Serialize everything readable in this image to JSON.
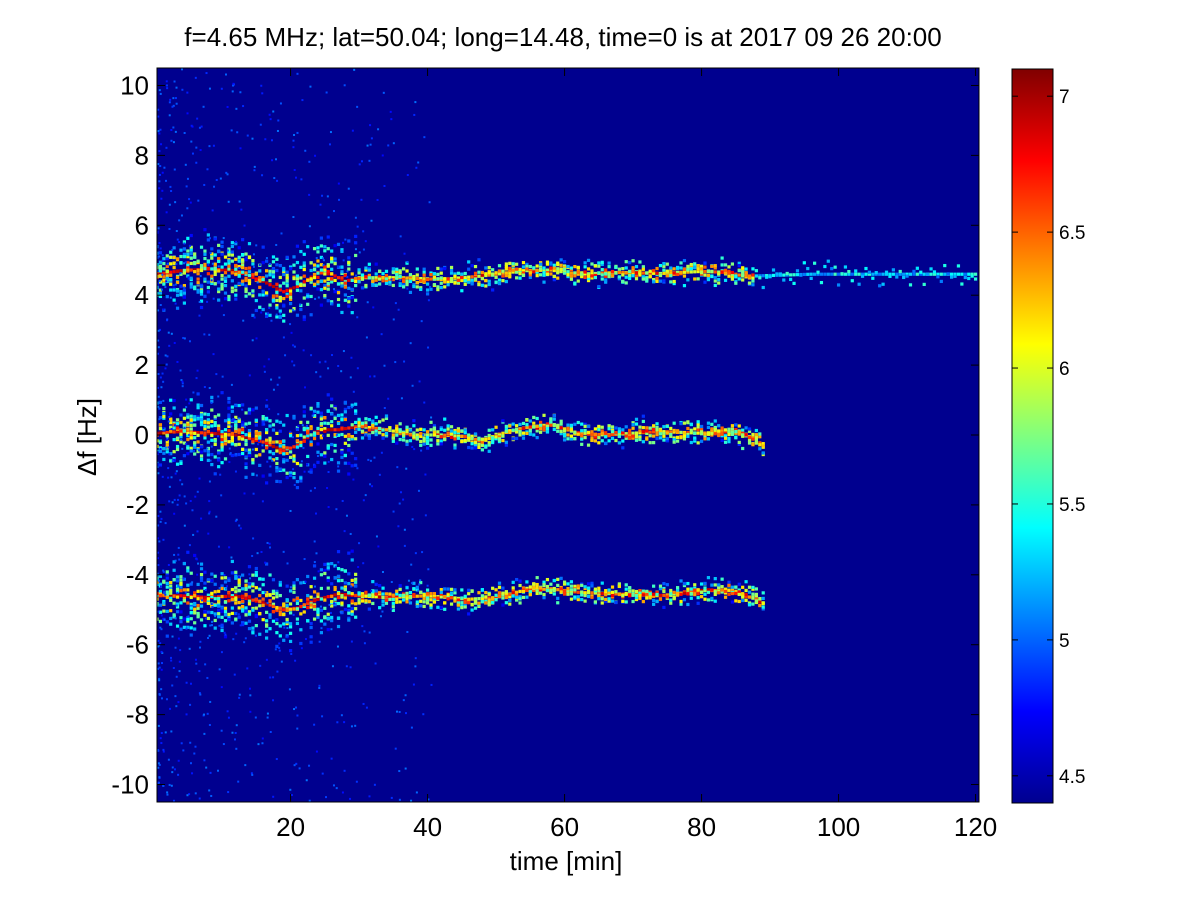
{
  "chart_data": {
    "type": "heatmap",
    "title": "f=4.65 MHz;  lat=50.04; long=14.48, time=0 is at 2017 09 26 20:00",
    "xlabel": "time [min]",
    "ylabel": "Δf [Hz]",
    "xlim": [
      0.5,
      120.5
    ],
    "ylim": [
      -10.5,
      10.5
    ],
    "xticks": [
      20,
      40,
      60,
      80,
      100,
      120
    ],
    "yticks": [
      -10,
      -8,
      -6,
      -4,
      -2,
      0,
      2,
      4,
      6,
      8,
      10
    ],
    "grid": false,
    "background_level": 4.5,
    "colorbar": {
      "colormap": "jet",
      "range": [
        4.4,
        7.1
      ],
      "ticks": [
        4.5,
        5,
        5.5,
        6,
        6.5,
        7
      ],
      "tick_labels": [
        "4.5",
        "5",
        "5.5",
        "6",
        "6.5",
        "7"
      ]
    },
    "traces": [
      {
        "points": [
          [
            0.5,
            4.6
          ],
          [
            4,
            4.7
          ],
          [
            8,
            4.75
          ],
          [
            12,
            4.7
          ],
          [
            16,
            4.4
          ],
          [
            19,
            4.1
          ],
          [
            21,
            4.25
          ],
          [
            24,
            4.65
          ],
          [
            26,
            4.6
          ],
          [
            28,
            4.4
          ],
          [
            30,
            4.5
          ],
          [
            36,
            4.5
          ],
          [
            42,
            4.45
          ],
          [
            48,
            4.55
          ],
          [
            54,
            4.7
          ],
          [
            58,
            4.72
          ],
          [
            62,
            4.6
          ],
          [
            68,
            4.65
          ],
          [
            74,
            4.62
          ],
          [
            80,
            4.68
          ],
          [
            84,
            4.65
          ],
          [
            87,
            4.5
          ],
          [
            88,
            4.55
          ],
          [
            96,
            4.6
          ],
          [
            104,
            4.6
          ],
          [
            112,
            4.6
          ],
          [
            120,
            4.6
          ]
        ],
        "peak": 7.0,
        "end_strong": 30,
        "end": 87.5
      },
      {
        "points": [
          [
            0.5,
            0.05
          ],
          [
            4,
            0.1
          ],
          [
            8,
            0.05
          ],
          [
            12,
            0.0
          ],
          [
            16,
            -0.2
          ],
          [
            19,
            -0.45
          ],
          [
            21,
            -0.3
          ],
          [
            24,
            0.15
          ],
          [
            27,
            0.15
          ],
          [
            30,
            0.25
          ],
          [
            34,
            0.15
          ],
          [
            38,
            0.0
          ],
          [
            42,
            0.0
          ],
          [
            46,
            -0.05
          ],
          [
            48,
            -0.2
          ],
          [
            50,
            0.0
          ],
          [
            54,
            0.2
          ],
          [
            58,
            0.3
          ],
          [
            62,
            0.05
          ],
          [
            66,
            0.0
          ],
          [
            70,
            0.05
          ],
          [
            74,
            0.1
          ],
          [
            80,
            0.05
          ],
          [
            84,
            0.1
          ],
          [
            88,
            -0.1
          ],
          [
            89,
            -0.35
          ]
        ],
        "peak": 7.0,
        "end_strong": 30,
        "end": 89.5
      },
      {
        "points": [
          [
            0.5,
            -4.6
          ],
          [
            4,
            -4.6
          ],
          [
            8,
            -4.65
          ],
          [
            12,
            -4.6
          ],
          [
            16,
            -4.8
          ],
          [
            19,
            -5.0
          ],
          [
            21,
            -4.95
          ],
          [
            24,
            -4.7
          ],
          [
            27,
            -4.55
          ],
          [
            30,
            -4.6
          ],
          [
            34,
            -4.65
          ],
          [
            40,
            -4.6
          ],
          [
            46,
            -4.7
          ],
          [
            50,
            -4.65
          ],
          [
            54,
            -4.45
          ],
          [
            58,
            -4.4
          ],
          [
            62,
            -4.5
          ],
          [
            68,
            -4.55
          ],
          [
            74,
            -4.6
          ],
          [
            80,
            -4.45
          ],
          [
            84,
            -4.45
          ],
          [
            88,
            -4.7
          ],
          [
            89,
            -4.8
          ]
        ],
        "peak": 7.0,
        "end_strong": 30,
        "end": 89.5
      }
    ]
  }
}
